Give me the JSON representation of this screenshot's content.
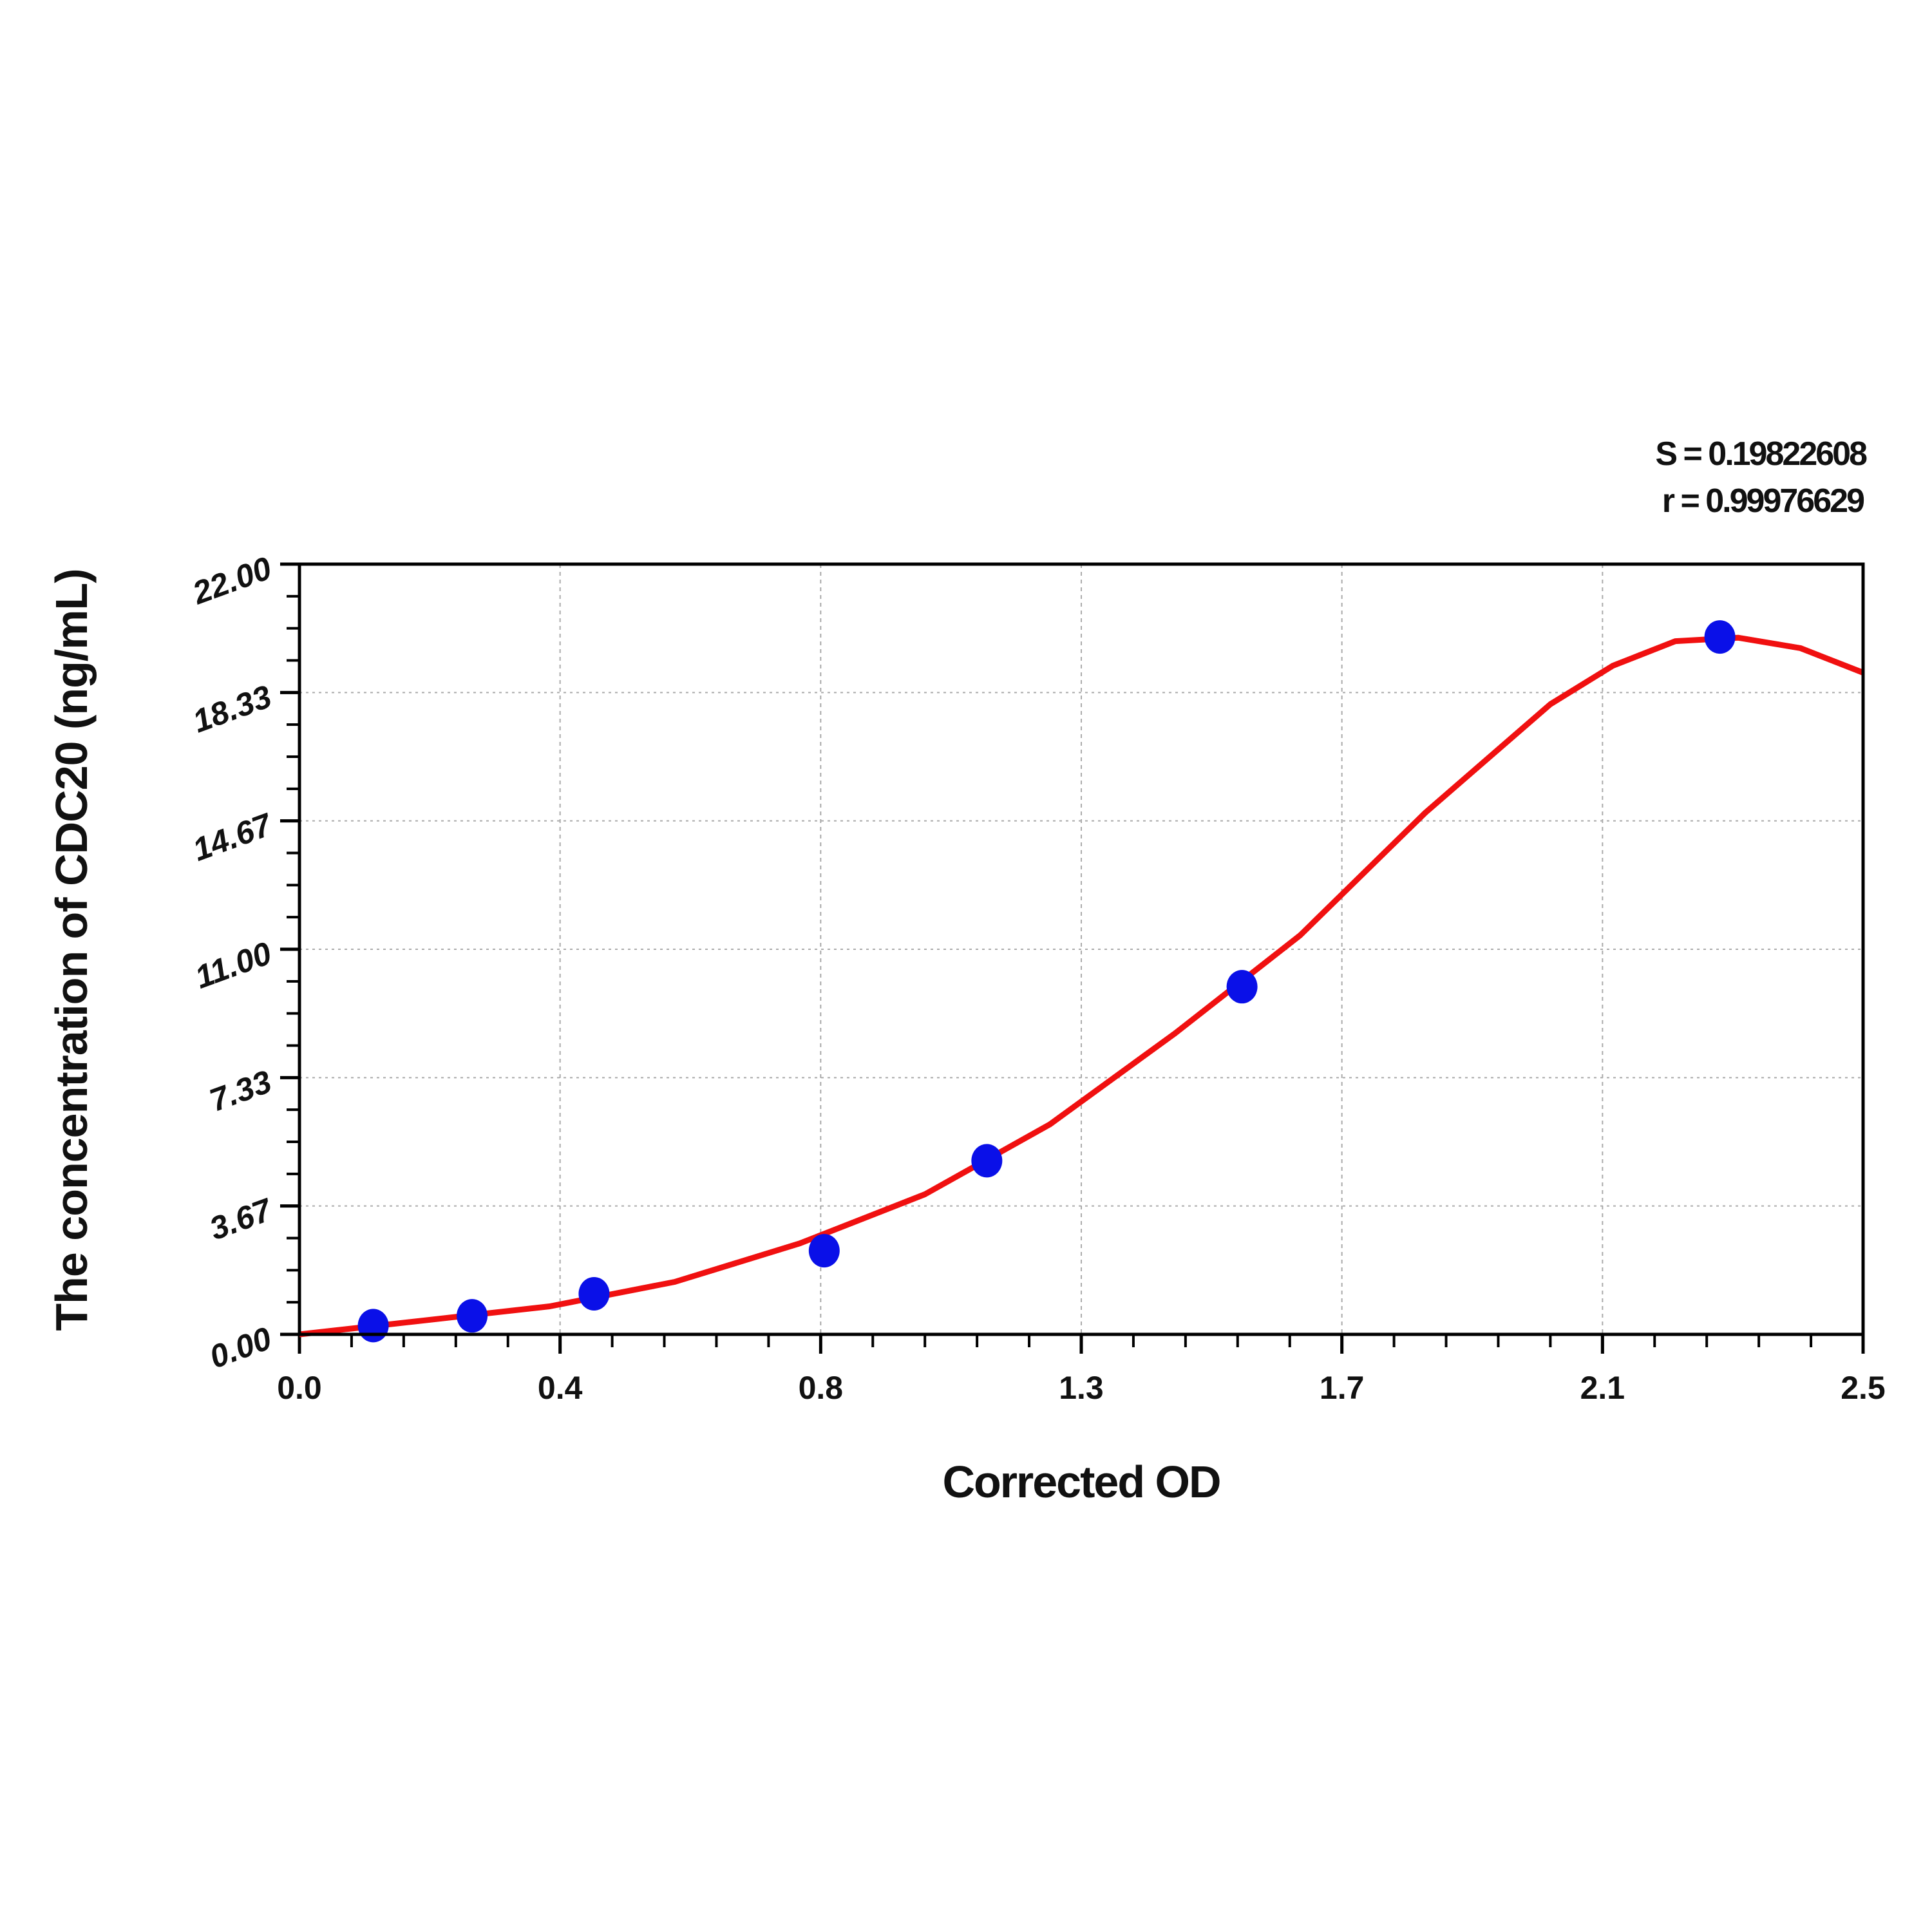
{
  "chart_data": {
    "type": "scatter",
    "title": "",
    "xlabel": "Corrected OD",
    "ylabel": "The concentration of CDC20 (ng/mL)",
    "xlim": [
      0,
      2.5
    ],
    "ylim": [
      0,
      22
    ],
    "x_ticks": [
      "0.0",
      "0.4",
      "0.8",
      "1.3",
      "1.7",
      "2.1",
      "2.5"
    ],
    "y_ticks": [
      "0.00",
      "3.67",
      "7.33",
      "11.00",
      "14.67",
      "18.33",
      "22.00"
    ],
    "grid": true,
    "annotations": [
      "S = 0.19822608",
      "r = 0.99976629"
    ],
    "points": {
      "color": "#0a10e8",
      "x": [
        0.118,
        0.276,
        0.471,
        0.839,
        1.099,
        1.507,
        2.271
      ],
      "y": [
        0.25,
        0.53,
        1.16,
        2.39,
        4.96,
        9.93,
        19.92
      ]
    },
    "fit_curve": {
      "color": "#f01010",
      "x": [
        0,
        0.2,
        0.4,
        0.6,
        0.8,
        1.0,
        1.2,
        1.4,
        1.6,
        1.8,
        2.0,
        2.1,
        2.2,
        2.3,
        2.4,
        2.5
      ],
      "y": [
        0,
        0.4,
        0.8,
        1.5,
        2.6,
        4.0,
        6.0,
        8.6,
        11.4,
        14.9,
        18.0,
        19.1,
        19.8,
        19.9,
        19.6,
        18.9
      ]
    }
  }
}
